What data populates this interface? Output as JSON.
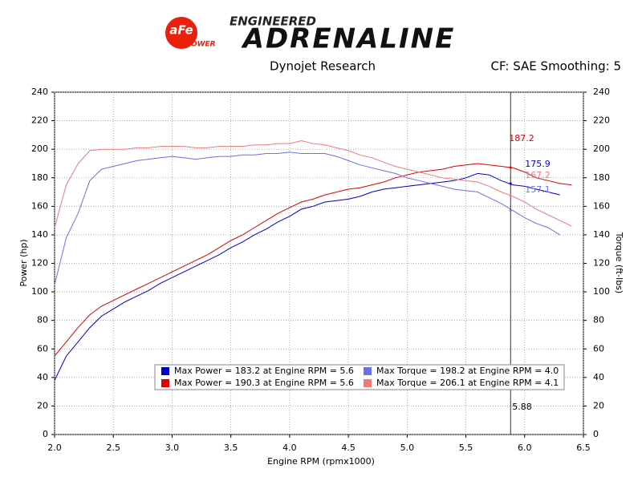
{
  "header": {
    "logo": "aFe",
    "logo_sub": "POWER",
    "brand_top": "ENGINEERED",
    "brand": "ADRENALINE"
  },
  "chart_data": {
    "type": "line",
    "title": "Dynojet Research",
    "subtitle": "CF: SAE Smoothing: 5",
    "x_label": "Engine RPM (rpmx1000)",
    "y_label": "Power (hp)",
    "y2_label": "Torque (ft-lbs)",
    "grid": true,
    "xlim": [
      2.0,
      6.5
    ],
    "xticks": [
      {
        "value": 2,
        "label": "2.0"
      },
      2.5,
      {
        "value": 3,
        "label": "3.0"
      },
      3.5,
      {
        "value": 4,
        "label": "4.0"
      },
      4.5,
      {
        "value": 5,
        "label": "5.0"
      },
      5.5,
      {
        "value": 6,
        "label": "6.0"
      },
      6.5
    ],
    "ylim": [
      0,
      240
    ],
    "yticks": [
      0,
      20,
      40,
      60,
      80,
      100,
      120,
      140,
      160,
      180,
      200,
      220,
      240
    ],
    "y2lim": [
      0,
      240
    ],
    "y2ticks": [
      0,
      20,
      40,
      60,
      80,
      100,
      120,
      140,
      160,
      180,
      200,
      220,
      240
    ],
    "x": [
      2.0,
      2.1,
      2.2,
      2.3,
      2.4,
      2.5,
      2.6,
      2.7,
      2.8,
      2.9,
      3.0,
      3.1,
      3.2,
      3.3,
      3.4,
      3.5,
      3.6,
      3.7,
      3.8,
      3.9,
      4.0,
      4.1,
      4.2,
      4.3,
      4.4,
      4.5,
      4.6,
      4.7,
      4.8,
      4.9,
      5.0,
      5.1,
      5.2,
      5.3,
      5.4,
      5.5,
      5.6,
      5.7,
      5.8,
      5.9,
      6.0,
      6.1,
      6.2,
      6.3,
      6.4
    ],
    "series": [
      {
        "name": "Max Power = 183.2 at Engine RPM = 5.6",
        "color": "#0000cc",
        "values": [
          38,
          55,
          65,
          75,
          83,
          88,
          93,
          97,
          101,
          106,
          110,
          114,
          118,
          122,
          126,
          131,
          135,
          140,
          144,
          149,
          153,
          158,
          160,
          163,
          164,
          165,
          167,
          170,
          172,
          173,
          174,
          175,
          176,
          177,
          178,
          180,
          183,
          182,
          178,
          175,
          174,
          172,
          170,
          168,
          null
        ]
      },
      {
        "name": "Max Power = 190.3 at Engine RPM = 5.6",
        "color": "#e00000",
        "values": [
          55,
          65,
          75,
          84,
          90,
          94,
          98,
          102,
          106,
          110,
          114,
          118,
          122,
          126,
          131,
          136,
          140,
          145,
          150,
          155,
          159,
          163,
          165,
          168,
          170,
          172,
          173,
          175,
          177,
          180,
          182,
          184,
          185,
          186,
          188,
          189,
          190,
          189,
          188,
          187,
          184,
          180,
          178,
          176,
          175
        ]
      },
      {
        "name": "Max Torque = 198.2 at Engine RPM = 4.0",
        "color": "#6f6fe8",
        "axis": "y2",
        "values": [
          105,
          138,
          155,
          178,
          186,
          188,
          190,
          192,
          193,
          194,
          195,
          194,
          193,
          194,
          195,
          195,
          196,
          196,
          197,
          197,
          198,
          197,
          197,
          197,
          195,
          192,
          189,
          187,
          185,
          183,
          180,
          178,
          176,
          174,
          172,
          171,
          170,
          166,
          162,
          157,
          152,
          148,
          145,
          140,
          null
        ]
      },
      {
        "name": "Max Torque = 206.1 at Engine RPM = 4.1",
        "color": "#f07a7a",
        "axis": "y2",
        "values": [
          145,
          175,
          190,
          199,
          200,
          200,
          200,
          201,
          201,
          202,
          202,
          202,
          201,
          201,
          202,
          202,
          202,
          203,
          203,
          204,
          204,
          206,
          204,
          203,
          201,
          199,
          196,
          194,
          191,
          188,
          186,
          184,
          182,
          180,
          179,
          178,
          177,
          174,
          170,
          167,
          163,
          158,
          154,
          150,
          146
        ]
      }
    ],
    "cursor": {
      "x": 5.88,
      "values": [
        187.2,
        175.9,
        167.2,
        157.1
      ],
      "colors": [
        "#e00000",
        "#0000cc",
        "#f07a7a",
        "#6f6fe8"
      ]
    }
  }
}
